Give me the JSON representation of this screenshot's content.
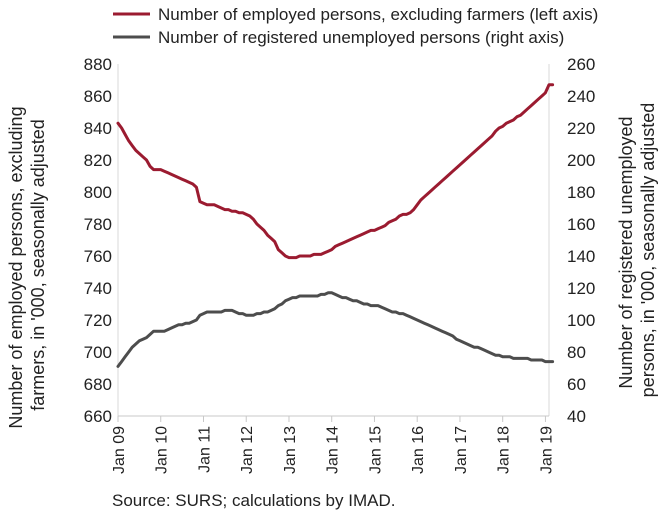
{
  "chart_data": {
    "type": "line",
    "title": "",
    "source": "Source: SURS; calculations by IMAD.",
    "ylabel_left": [
      "Number of employed persons, excluding",
      "farmers, in '000, seasonally adjusted"
    ],
    "ylabel_right": [
      "Number of registered unemployed",
      "persons, in '000, seasonally adjusted"
    ],
    "ylim_left": [
      660,
      880
    ],
    "yticks_left": [
      660,
      680,
      700,
      720,
      740,
      760,
      780,
      800,
      820,
      840,
      860,
      880
    ],
    "ylim_right": [
      40,
      260
    ],
    "yticks_right": [
      40,
      60,
      80,
      100,
      120,
      140,
      160,
      180,
      200,
      220,
      240,
      260
    ],
    "x_ticks": [
      "Jan 09",
      "Jan 10",
      "Jan 11",
      "Jan 12",
      "Jan 13",
      "Jan 14",
      "Jan 15",
      "Jan 16",
      "Jan 17",
      "Jan 18",
      "Jan 19"
    ],
    "x_start": "Jan 09",
    "x_end": "Feb 19",
    "grid": false,
    "legend_position": "top",
    "series": [
      {
        "name": "Number of employed persons, excluding farmers (left axis)",
        "axis": "left",
        "color": "#9b1b30",
        "values": [
          843,
          840,
          836,
          832,
          829,
          826,
          824,
          822,
          820,
          816,
          814,
          814,
          814,
          813,
          812,
          811,
          810,
          809,
          808,
          807,
          806,
          805,
          803,
          794,
          793,
          792,
          792,
          792,
          791,
          790,
          789,
          789,
          788,
          788,
          787,
          787,
          786,
          785,
          783,
          780,
          778,
          776,
          773,
          771,
          769,
          764,
          762,
          760,
          759,
          759,
          759,
          760,
          760,
          760,
          760,
          761,
          761,
          761,
          762,
          763,
          764,
          766,
          767,
          768,
          769,
          770,
          771,
          772,
          773,
          774,
          775,
          776,
          776,
          777,
          778,
          779,
          781,
          782,
          783,
          785,
          786,
          786,
          787,
          789,
          792,
          795,
          797,
          799,
          801,
          803,
          805,
          807,
          809,
          811,
          813,
          815,
          817,
          819,
          821,
          823,
          825,
          827,
          829,
          831,
          833,
          835,
          838,
          840,
          841,
          843,
          844,
          845,
          847,
          848,
          850,
          852,
          854,
          856,
          858,
          860,
          862,
          867,
          867
        ]
      },
      {
        "name": "Number of registered unemployed persons (right axis)",
        "axis": "right",
        "color": "#4d4d4d",
        "values": [
          71,
          74,
          77,
          80,
          83,
          85,
          87,
          88,
          89,
          91,
          93,
          93,
          93,
          93,
          94,
          95,
          96,
          97,
          97,
          98,
          98,
          99,
          100,
          103,
          104,
          105,
          105,
          105,
          105,
          105,
          106,
          106,
          106,
          105,
          104,
          104,
          103,
          103,
          103,
          104,
          104,
          105,
          105,
          106,
          107,
          109,
          110,
          112,
          113,
          114,
          114,
          115,
          115,
          115,
          115,
          115,
          115,
          116,
          116,
          117,
          117,
          116,
          115,
          114,
          114,
          113,
          112,
          112,
          111,
          110,
          110,
          109,
          109,
          109,
          108,
          107,
          106,
          105,
          105,
          104,
          104,
          103,
          102,
          101,
          100,
          99,
          98,
          97,
          96,
          95,
          94,
          93,
          92,
          91,
          90,
          88,
          87,
          86,
          85,
          84,
          83,
          83,
          82,
          81,
          80,
          79,
          78,
          78,
          77,
          77,
          77,
          76,
          76,
          76,
          76,
          76,
          75,
          75,
          75,
          75,
          74,
          74,
          74
        ]
      }
    ]
  }
}
